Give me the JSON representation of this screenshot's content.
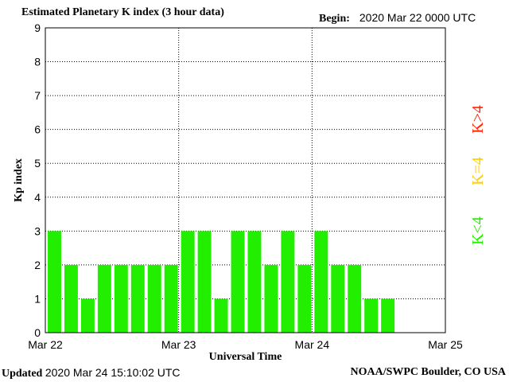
{
  "header": {
    "title": "Estimated Planetary K index (3 hour data)",
    "begin_label": "Begin:",
    "begin_value": "2020 Mar 22 0000 UTC"
  },
  "footer": {
    "updated_label": "Updated",
    "updated_value": "2020 Mar 24 15:10:02 UTC",
    "source": "NOAA/SWPC Boulder, CO USA"
  },
  "legend": {
    "items": [
      {
        "label": "K<4",
        "color": "#22ee00"
      },
      {
        "label": "K=4",
        "color": "#ffcc00"
      },
      {
        "label": "K>4",
        "color": "#ff2200"
      }
    ]
  },
  "chart_data": {
    "type": "bar",
    "title": "Estimated Planetary K index (3 hour data)",
    "xlabel": "Universal Time",
    "ylabel": "Kp index",
    "ylim": [
      0,
      9
    ],
    "yticks": [
      0,
      1,
      2,
      3,
      4,
      5,
      6,
      7,
      8,
      9
    ],
    "xticks": [
      "Mar 22",
      "Mar 23",
      "Mar 24",
      "Mar 25"
    ],
    "bar_color": "#22ee00",
    "grid": true,
    "values": [
      3,
      2,
      1,
      2,
      2,
      2,
      2,
      2,
      3,
      3,
      1,
      3,
      3,
      2,
      3,
      2,
      3,
      2,
      2,
      1,
      1
    ]
  }
}
